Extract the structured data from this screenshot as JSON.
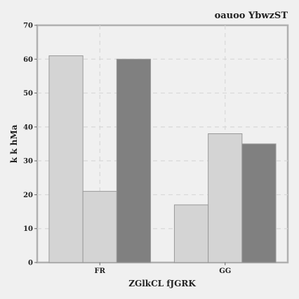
{
  "chart_data": {
    "type": "bar",
    "title": "oauoo YbwzST",
    "xlabel": "ZGlkCL fJGRK",
    "ylabel": "k k hMa",
    "categories": [
      "FR",
      "GG"
    ],
    "series": [
      {
        "values": [
          61,
          17
        ],
        "color": "#d4d4d4"
      },
      {
        "values": [
          21,
          38
        ],
        "color": "#d4d4d4"
      },
      {
        "values": [
          60,
          35
        ],
        "color": "#808080"
      }
    ],
    "ylim": [
      0,
      70
    ],
    "yticks": [
      0,
      10,
      20,
      30,
      40,
      50,
      60,
      70
    ],
    "grid": true,
    "legend": "none",
    "colors": {
      "plot_background": "#f0f0f0",
      "frame": "#b0b0b0",
      "grid": "#d8d8d8",
      "bar_edge": "#999999"
    }
  }
}
